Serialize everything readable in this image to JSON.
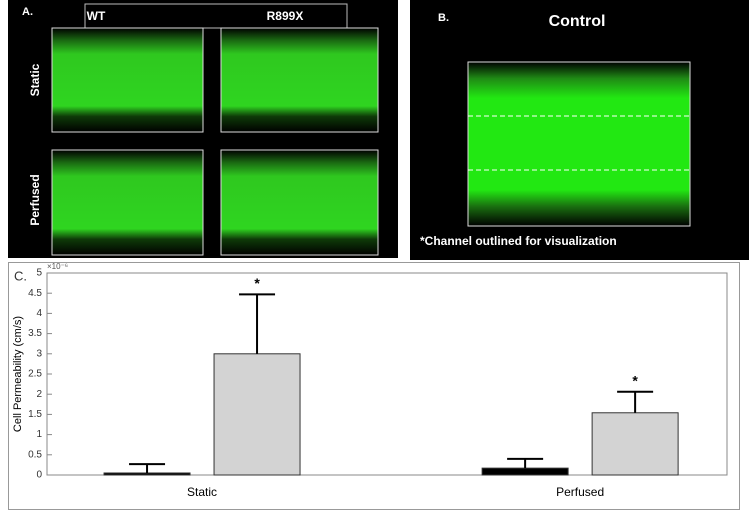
{
  "panel_a": {
    "label": "A.",
    "columns": [
      "WT",
      "R899X"
    ],
    "rows": [
      "Static",
      "Perfused"
    ]
  },
  "panel_b": {
    "label": "B.",
    "title": "Control",
    "caption": "*Channel outlined for visualization"
  },
  "chart_data": {
    "type": "bar",
    "panel_label": "C.",
    "y_label": "Cell Permeability (cm/s)",
    "y_exponent": "×10⁻⁶",
    "categories": [
      "Static",
      "Perfused"
    ],
    "series": [
      {
        "color": "#000000",
        "values": [
          0.05,
          0.17
        ],
        "errors": [
          0.22,
          0.23
        ]
      },
      {
        "color": "#d3d3d3",
        "values": [
          3.0,
          1.54
        ],
        "errors": [
          1.47,
          0.52
        ]
      }
    ],
    "significance_labels": [
      "*",
      "*"
    ],
    "ylim": [
      0,
      5
    ],
    "yticks": [
      0,
      0.5,
      1,
      1.5,
      2,
      2.5,
      3,
      3.5,
      4,
      4.5,
      5
    ]
  }
}
